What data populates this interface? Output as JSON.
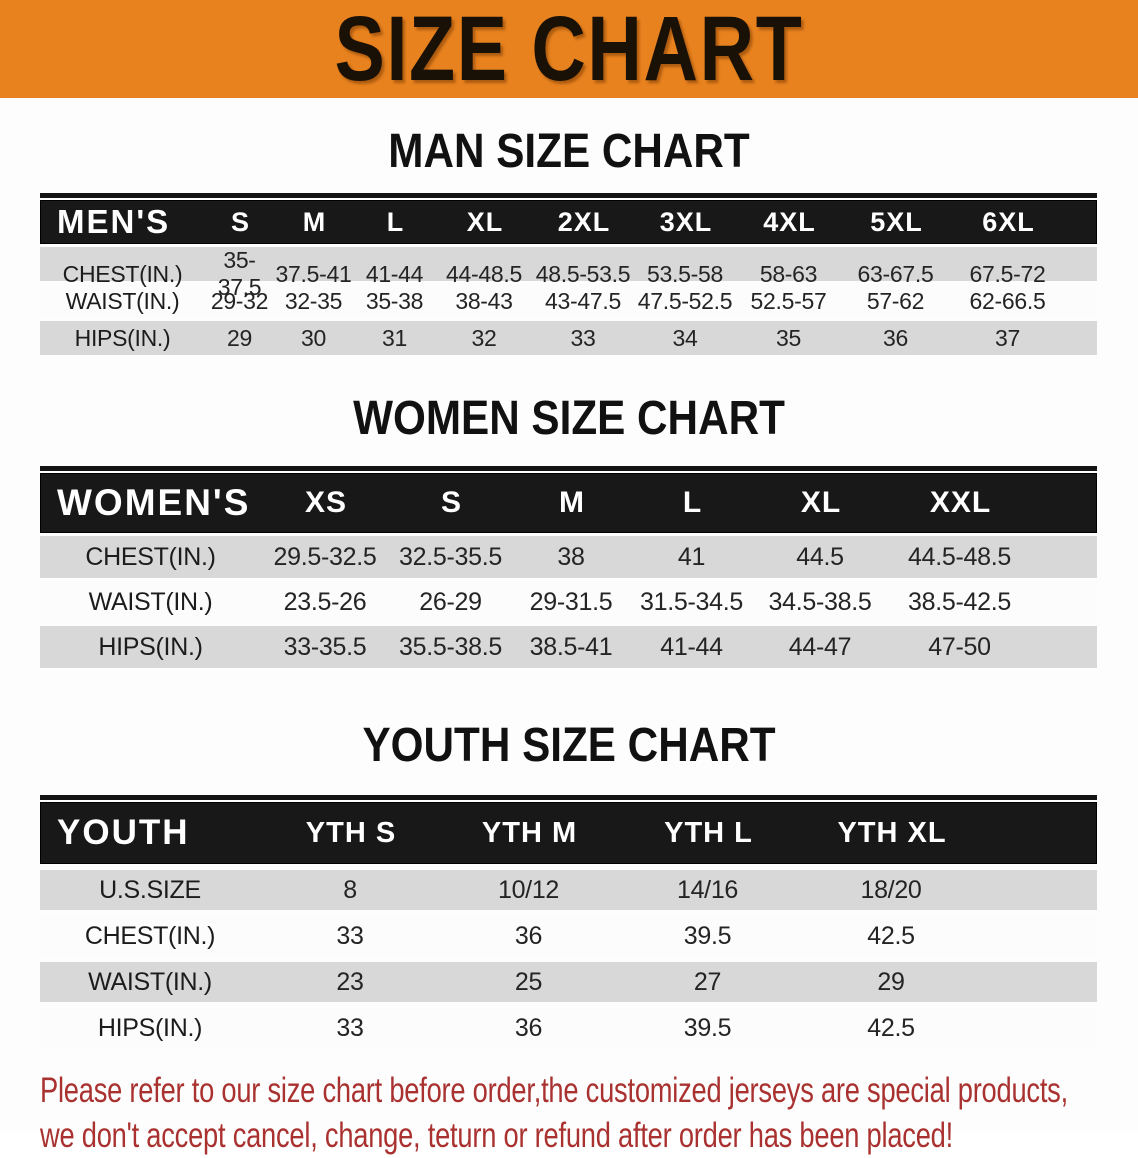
{
  "banner": {
    "title": "SIZE CHART",
    "bg_color": "#e8821e"
  },
  "colors": {
    "header_bar": "#181818",
    "shaded_row": "#d8d8d8",
    "footer_text": "#a93230"
  },
  "chart_data": [
    {
      "type": "table",
      "title": "MAN SIZE CHART",
      "row_header": "MEN'S",
      "columns": [
        "S",
        "M",
        "L",
        "XL",
        "2XL",
        "3XL",
        "4XL",
        "5XL",
        "6XL"
      ],
      "rows": [
        {
          "label": "CHEST(IN.)",
          "values": [
            "35-37.5",
            "37.5-41",
            "41-44",
            "44-48.5",
            "48.5-53.5",
            "53.5-58",
            "58-63",
            "63-67.5",
            "67.5-72"
          ]
        },
        {
          "label": "WAIST(IN.)",
          "values": [
            "29-32",
            "32-35",
            "35-38",
            "38-43",
            "43-47.5",
            "47.5-52.5",
            "52.5-57",
            "57-62",
            "62-66.5"
          ]
        },
        {
          "label": "HIPS(IN.)",
          "values": [
            "29",
            "30",
            "31",
            "32",
            "33",
            "34",
            "35",
            "36",
            "37"
          ]
        }
      ]
    },
    {
      "type": "table",
      "title": "WOMEN SIZE CHART",
      "row_header": "WOMEN'S",
      "columns": [
        "XS",
        "S",
        "M",
        "L",
        "XL",
        "XXL"
      ],
      "rows": [
        {
          "label": "CHEST(IN.)",
          "values": [
            "29.5-32.5",
            "32.5-35.5",
            "38",
            "41",
            "44.5",
            "44.5-48.5"
          ]
        },
        {
          "label": "WAIST(IN.)",
          "values": [
            "23.5-26",
            "26-29",
            "29-31.5",
            "31.5-34.5",
            "34.5-38.5",
            "38.5-42.5"
          ]
        },
        {
          "label": "HIPS(IN.)",
          "values": [
            "33-35.5",
            "35.5-38.5",
            "38.5-41",
            "41-44",
            "44-47",
            "47-50"
          ]
        }
      ]
    },
    {
      "type": "table",
      "title": "YOUTH SIZE CHART",
      "row_header": "YOUTH",
      "columns": [
        "YTH S",
        "YTH M",
        "YTH L",
        "YTH XL"
      ],
      "rows": [
        {
          "label": "U.S.SIZE",
          "values": [
            "8",
            "10/12",
            "14/16",
            "18/20"
          ]
        },
        {
          "label": "CHEST(IN.)",
          "values": [
            "33",
            "36",
            "39.5",
            "42.5"
          ]
        },
        {
          "label": "WAIST(IN.)",
          "values": [
            "23",
            "25",
            "27",
            "29"
          ]
        },
        {
          "label": "HIPS(IN.)",
          "values": [
            "33",
            "36",
            "39.5",
            "42.5"
          ]
        }
      ]
    }
  ],
  "footer": {
    "line1": "Please refer to our size chart before order,the customized jerseys are special products,",
    "line2": "we don't accept cancel, change, teturn or refund after order has been placed!"
  }
}
